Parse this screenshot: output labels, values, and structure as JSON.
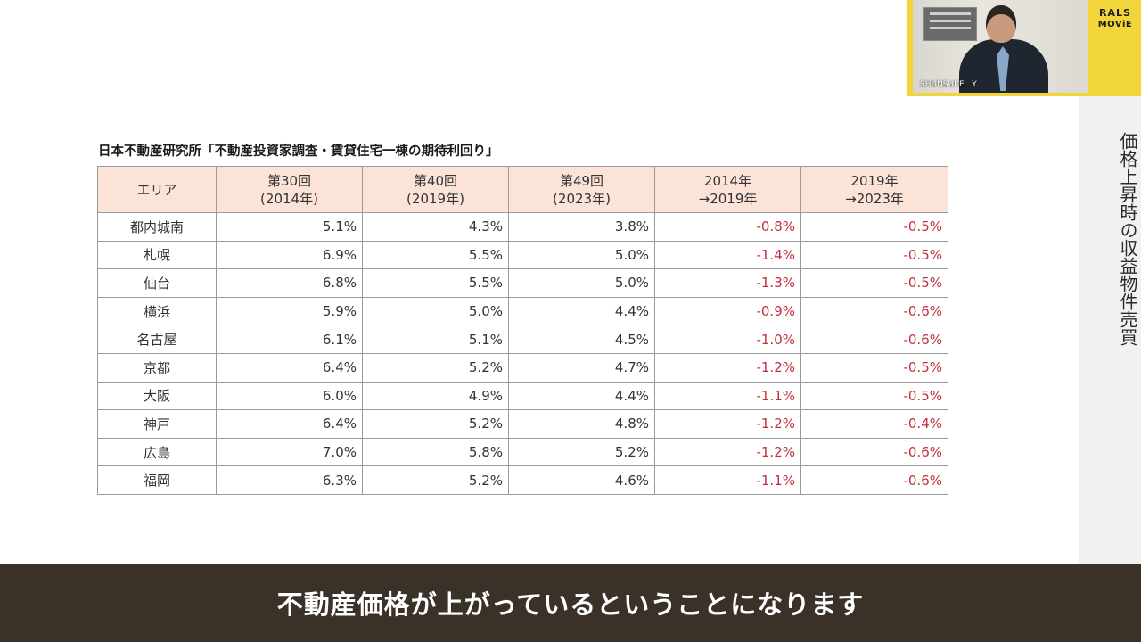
{
  "slide": {
    "vertical_title": "価格上昇時の収益物件売買",
    "table_title": "日本不動産研究所「不動産投資家調査・賃貸住宅一棟の期待利回り」",
    "table": {
      "headers": [
        "エリア",
        "第30回\n(2014年)",
        "第40回\n(2019年)",
        "第49回\n(2023年)",
        "2014年\n→2019年",
        "2019年\n→2023年"
      ],
      "rows": [
        {
          "area": "都内城南",
          "r2014": "5.1%",
          "r2019": "4.3%",
          "r2023": "3.8%",
          "d1": "-0.8%",
          "d2": "-0.5%"
        },
        {
          "area": "札幌",
          "r2014": "6.9%",
          "r2019": "5.5%",
          "r2023": "5.0%",
          "d1": "-1.4%",
          "d2": "-0.5%"
        },
        {
          "area": "仙台",
          "r2014": "6.8%",
          "r2019": "5.5%",
          "r2023": "5.0%",
          "d1": "-1.3%",
          "d2": "-0.5%"
        },
        {
          "area": "横浜",
          "r2014": "5.9%",
          "r2019": "5.0%",
          "r2023": "4.4%",
          "d1": "-0.9%",
          "d2": "-0.6%"
        },
        {
          "area": "名古屋",
          "r2014": "6.1%",
          "r2019": "5.1%",
          "r2023": "4.5%",
          "d1": "-1.0%",
          "d2": "-0.6%"
        },
        {
          "area": "京都",
          "r2014": "6.4%",
          "r2019": "5.2%",
          "r2023": "4.7%",
          "d1": "-1.2%",
          "d2": "-0.5%"
        },
        {
          "area": "大阪",
          "r2014": "6.0%",
          "r2019": "4.9%",
          "r2023": "4.4%",
          "d1": "-1.1%",
          "d2": "-0.5%"
        },
        {
          "area": "神戸",
          "r2014": "6.4%",
          "r2019": "5.2%",
          "r2023": "4.8%",
          "d1": "-1.2%",
          "d2": "-0.4%"
        },
        {
          "area": "広島",
          "r2014": "7.0%",
          "r2019": "5.8%",
          "r2023": "5.2%",
          "d1": "-1.2%",
          "d2": "-0.6%"
        },
        {
          "area": "福岡",
          "r2014": "6.3%",
          "r2019": "5.2%",
          "r2023": "4.6%",
          "d1": "-1.1%",
          "d2": "-0.6%"
        }
      ]
    }
  },
  "video": {
    "speaker_name": "SHUNSUKE . Y",
    "logo_line1": "RALS",
    "logo_line2": "MOViE"
  },
  "subtitle": "不動産価格が上がっているということになります",
  "colors": {
    "header_bg": "#fbe3d8",
    "negative": "#c0303c",
    "video_bg": "#f2d43b",
    "subtitle_bg": "#3a3129"
  }
}
